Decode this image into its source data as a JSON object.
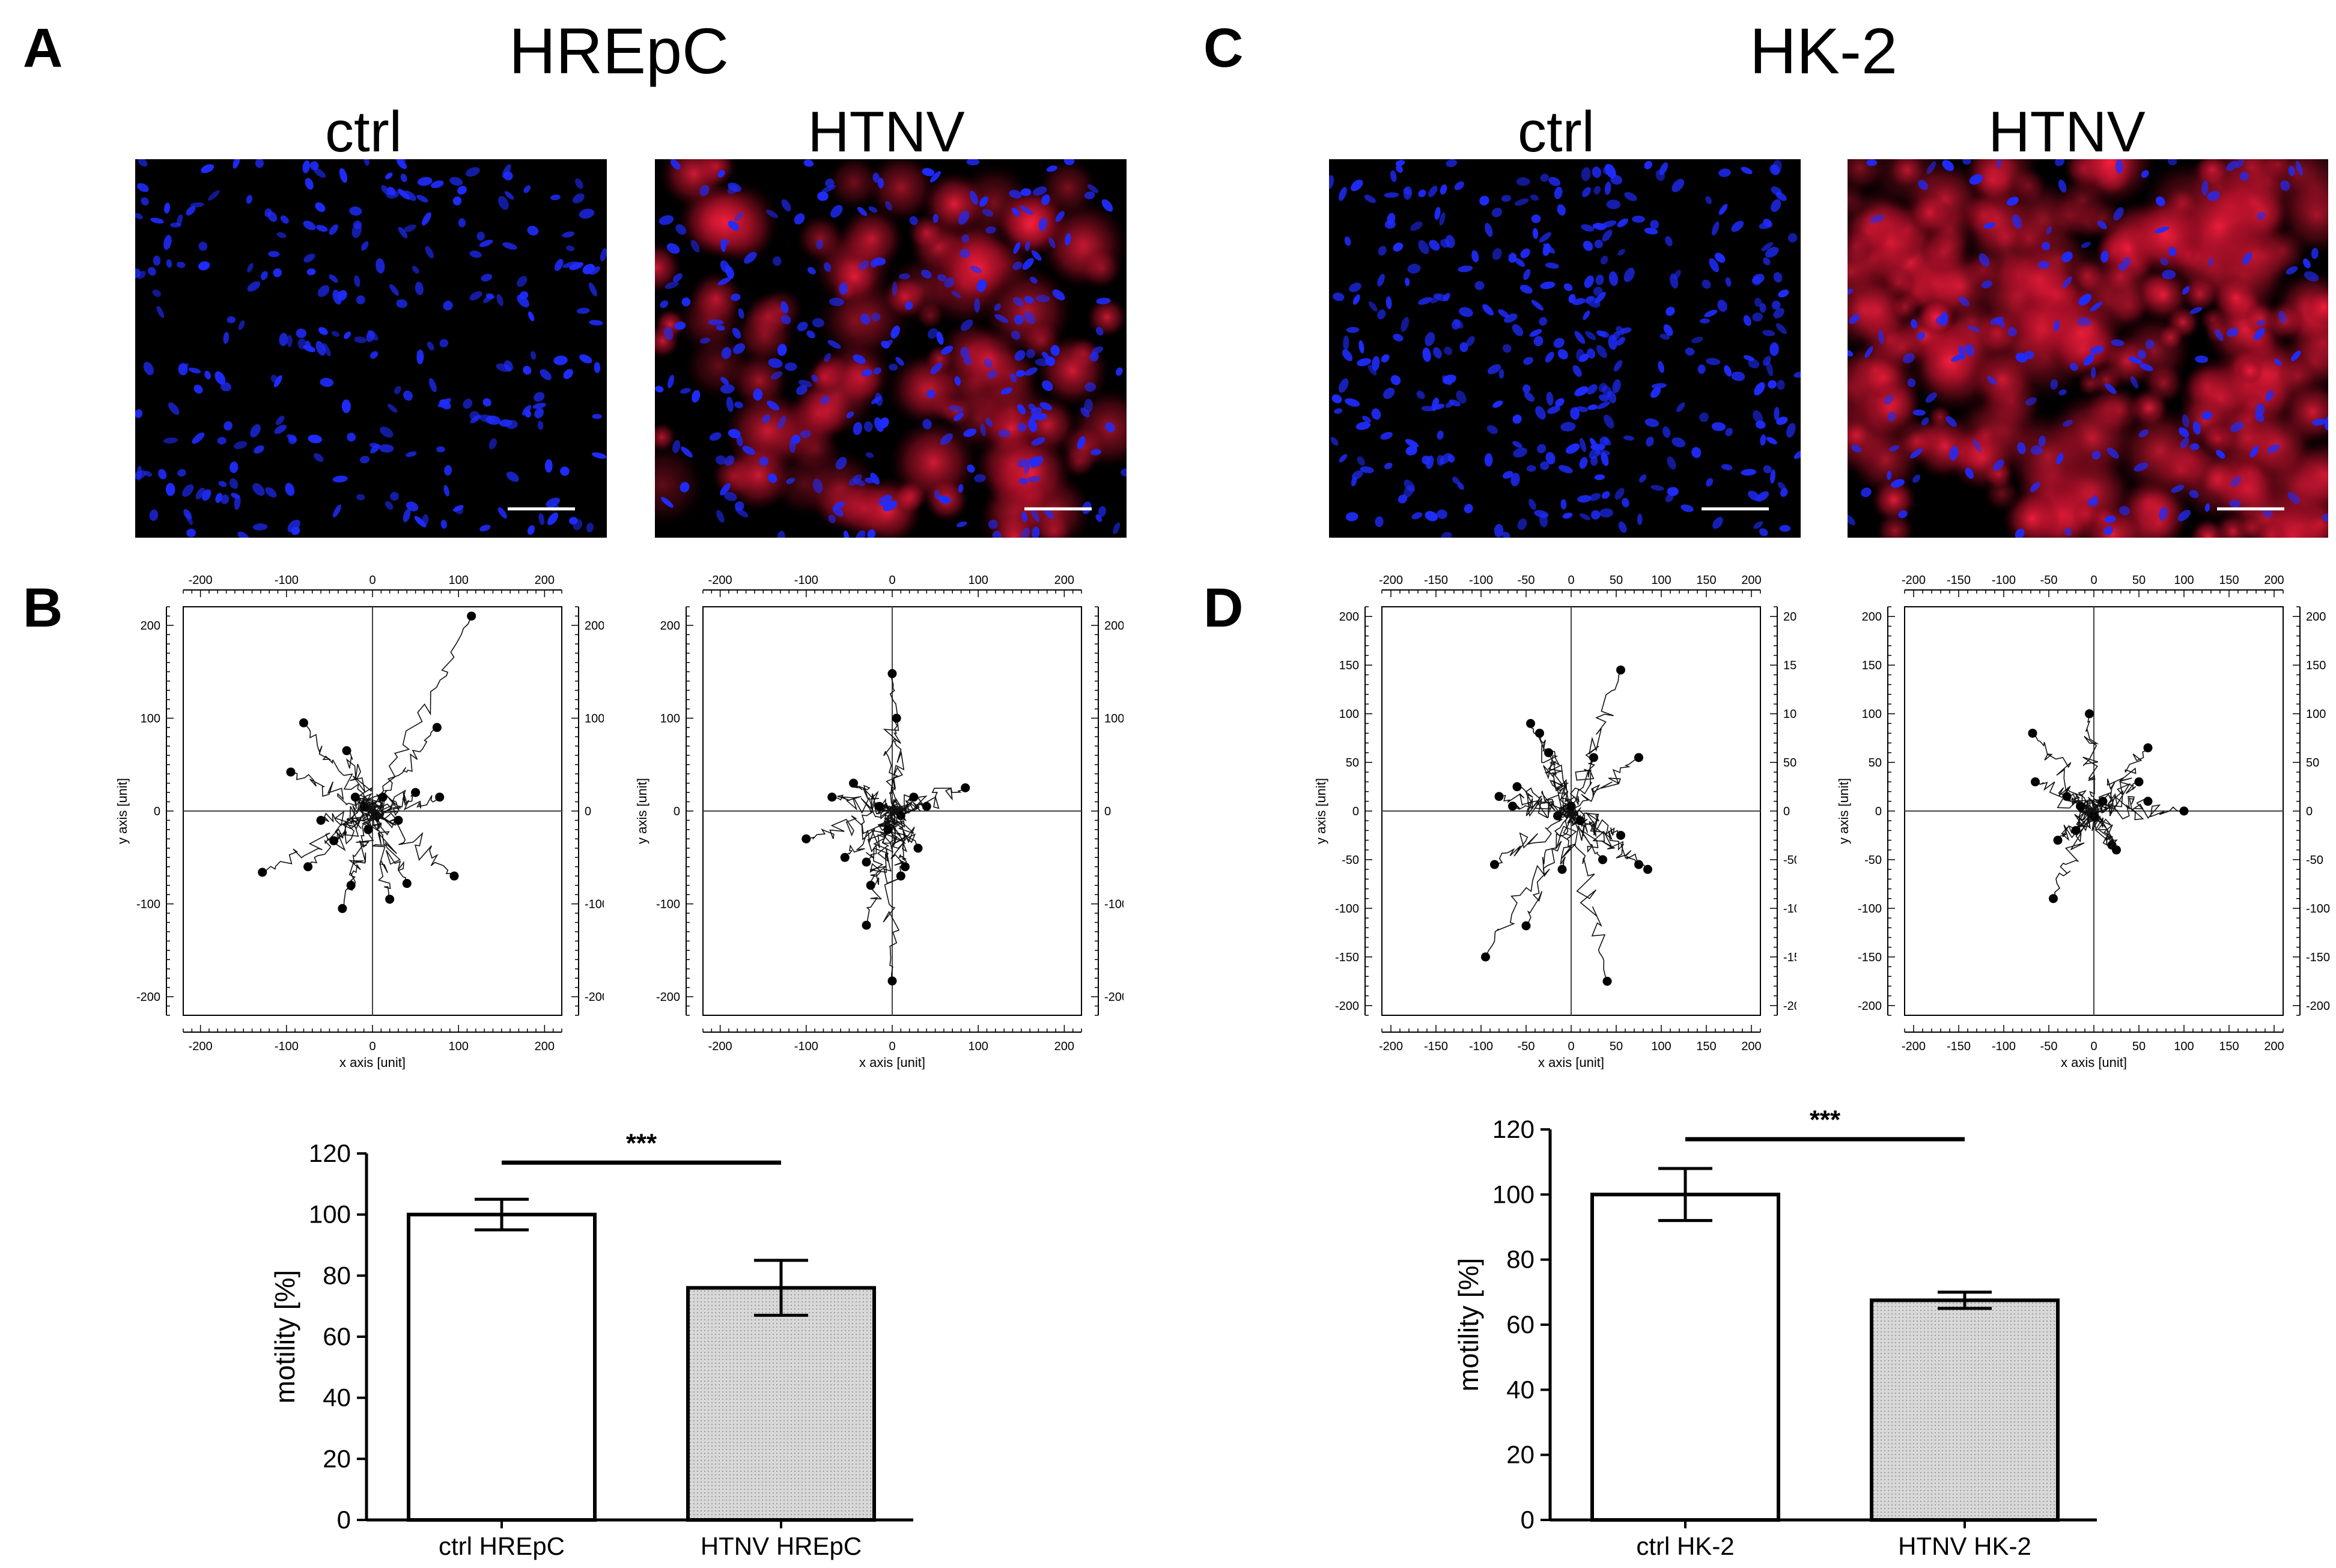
{
  "panels": {
    "a": {
      "label": "A",
      "title": "HREpC",
      "ctrl_label": "ctrl",
      "htnv_label": "HTNV"
    },
    "b": {
      "label": "B"
    },
    "c": {
      "label": "C",
      "title": "HK-2",
      "ctrl_label": "ctrl",
      "htnv_label": "HTNV"
    },
    "d": {
      "label": "D"
    }
  },
  "colors": {
    "nuclei": "#1f2cff",
    "virus": "#ff2040",
    "background": "#000000",
    "bar_ctrl": "#ffffff",
    "bar_htnv": "#d8d8d8"
  },
  "chart_data": [
    {
      "type": "scatter",
      "id": "track-hrepc-ctrl",
      "xlabel": "x axis [unit]",
      "ylabel": "y axis [unit]",
      "xlim": [
        -220,
        220
      ],
      "ylim": [
        -220,
        220
      ],
      "xticks": [
        -200,
        -100,
        0,
        100,
        200
      ],
      "yticks": [
        -200,
        -100,
        0,
        100,
        200
      ],
      "endpoints": [
        [
          115,
          210
        ],
        [
          -80,
          95
        ],
        [
          -95,
          42
        ],
        [
          75,
          90
        ],
        [
          -30,
          65
        ],
        [
          -60,
          -10
        ],
        [
          -75,
          -60
        ],
        [
          -45,
          -32
        ],
        [
          -35,
          -105
        ],
        [
          -128,
          -66
        ],
        [
          -25,
          -80
        ],
        [
          20,
          -95
        ],
        [
          40,
          -78
        ],
        [
          78,
          15
        ],
        [
          95,
          -70
        ],
        [
          -10,
          5
        ],
        [
          5,
          -5
        ],
        [
          12,
          15
        ],
        [
          30,
          -10
        ],
        [
          50,
          20
        ],
        [
          -20,
          15
        ],
        [
          -5,
          -20
        ]
      ]
    },
    {
      "type": "scatter",
      "id": "track-hrepc-htnv",
      "xlabel": "x axis [unit]",
      "ylabel": "y axis [unit]",
      "xlim": [
        -220,
        220
      ],
      "ylim": [
        -220,
        220
      ],
      "xticks": [
        -200,
        -100,
        0,
        100,
        200
      ],
      "yticks": [
        -200,
        -100,
        0,
        100,
        200
      ],
      "endpoints": [
        [
          0,
          148
        ],
        [
          5,
          100
        ],
        [
          -45,
          30
        ],
        [
          -55,
          -50
        ],
        [
          -30,
          -55
        ],
        [
          -100,
          -30
        ],
        [
          -70,
          15
        ],
        [
          -25,
          -80
        ],
        [
          10,
          -70
        ],
        [
          15,
          -60
        ],
        [
          -30,
          -123
        ],
        [
          0,
          -183
        ],
        [
          85,
          25
        ],
        [
          40,
          5
        ],
        [
          25,
          15
        ],
        [
          -15,
          5
        ],
        [
          10,
          -5
        ],
        [
          -5,
          -20
        ],
        [
          30,
          -40
        ]
      ]
    },
    {
      "type": "scatter",
      "id": "track-hk2-ctrl",
      "xlabel": "x axis [unit]",
      "ylabel": "y axis [unit]",
      "xlim": [
        -210,
        210
      ],
      "ylim": [
        -210,
        210
      ],
      "xticks": [
        -200,
        -150,
        -100,
        -50,
        0,
        50,
        100,
        150,
        200
      ],
      "yticks": [
        -200,
        -150,
        -100,
        -50,
        0,
        50,
        100,
        150,
        200
      ],
      "endpoints": [
        [
          55,
          145
        ],
        [
          -80,
          15
        ],
        [
          -60,
          25
        ],
        [
          -45,
          90
        ],
        [
          -35,
          80
        ],
        [
          -25,
          60
        ],
        [
          25,
          55
        ],
        [
          75,
          55
        ],
        [
          -85,
          -55
        ],
        [
          -95,
          -150
        ],
        [
          -50,
          -118
        ],
        [
          -10,
          -60
        ],
        [
          35,
          -50
        ],
        [
          55,
          -25
        ],
        [
          75,
          -55
        ],
        [
          85,
          -60
        ],
        [
          40,
          -175
        ],
        [
          -15,
          -5
        ],
        [
          0,
          5
        ],
        [
          10,
          -10
        ],
        [
          -65,
          5
        ]
      ]
    },
    {
      "type": "scatter",
      "id": "track-hk2-htnv",
      "xlabel": "x axis [unit]",
      "ylabel": "y axis [unit]",
      "xlim": [
        -210,
        210
      ],
      "ylim": [
        -210,
        210
      ],
      "xticks": [
        -200,
        -150,
        -100,
        -50,
        0,
        50,
        100,
        150,
        200
      ],
      "yticks": [
        -200,
        -150,
        -100,
        -50,
        0,
        50,
        100,
        150,
        200
      ],
      "endpoints": [
        [
          -65,
          30
        ],
        [
          -68,
          80
        ],
        [
          -30,
          15
        ],
        [
          -5,
          100
        ],
        [
          60,
          65
        ],
        [
          50,
          30
        ],
        [
          100,
          0
        ],
        [
          60,
          10
        ],
        [
          -40,
          -30
        ],
        [
          -20,
          -20
        ],
        [
          -45,
          -90
        ],
        [
          20,
          -35
        ],
        [
          25,
          -40
        ],
        [
          0,
          -5
        ],
        [
          10,
          10
        ],
        [
          -15,
          5
        ]
      ]
    },
    {
      "type": "bar",
      "id": "bar-hrepc",
      "categories": [
        "ctrl HREpC",
        "HTNV HREpC"
      ],
      "values": [
        100,
        76
      ],
      "errors": [
        5,
        9
      ],
      "ylabel": "motility [%]",
      "ylim": [
        0,
        120
      ],
      "yticks": [
        0,
        20,
        40,
        60,
        80,
        100,
        120
      ],
      "significance": "***"
    },
    {
      "type": "bar",
      "id": "bar-hk2",
      "categories": [
        "ctrl HK-2",
        "HTNV HK-2"
      ],
      "values": [
        100,
        67.5
      ],
      "errors": [
        8,
        2.5
      ],
      "ylabel": "motility [%]",
      "ylim": [
        0,
        120
      ],
      "yticks": [
        0,
        20,
        40,
        60,
        80,
        100,
        120
      ],
      "significance": "***"
    }
  ]
}
